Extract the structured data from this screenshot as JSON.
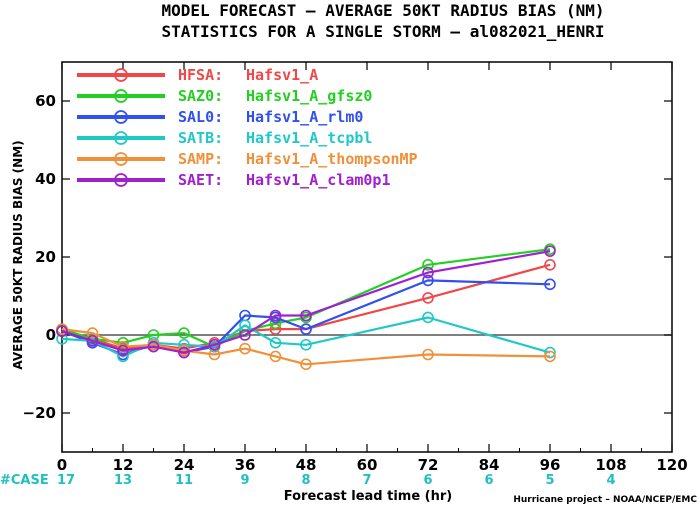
{
  "chart_data": {
    "type": "line",
    "title": "MODEL FORECAST – AVERAGE 50KT RADIUS BIAS (NM)",
    "subtitle": "STATISTICS FOR A SINGLE STORM – al082021_HENRI",
    "xlabel": "Forecast lead time (hr)",
    "ylabel": "AVERAGE 50KT RADIUS BIAS (NM)",
    "xlim": [
      0,
      120
    ],
    "ylim": [
      -30,
      70
    ],
    "x_ticks": [
      "0",
      "12",
      "24",
      "36",
      "48",
      "60",
      "72",
      "84",
      "96",
      "108",
      "120"
    ],
    "y_ticks": [
      "−20",
      "0",
      "20",
      "40",
      "60"
    ],
    "grid": false,
    "legend_position": "top-left",
    "zero_line": true,
    "x": [
      0,
      6,
      12,
      18,
      24,
      30,
      36,
      42,
      48,
      72,
      96
    ],
    "series": [
      {
        "name": "HFSA:",
        "label": "Hafsv1_A",
        "color": "#f04848",
        "values": [
          1,
          -1,
          -3.5,
          -2.5,
          -3.5,
          -2,
          1,
          1.5,
          1.5,
          9.5,
          18
        ]
      },
      {
        "name": "SAZ0:",
        "label": "Hafsv1_A_gfsz0",
        "color": "#22d022",
        "values": [
          1.5,
          -1,
          -2,
          0,
          0.5,
          -3,
          1,
          3,
          4.5,
          18,
          22
        ]
      },
      {
        "name": "SAL0:",
        "label": "Hafsv1_A_rlm0",
        "color": "#3050f0",
        "values": [
          1,
          -2,
          -5,
          -2.5,
          -4.5,
          -3,
          5,
          4.5,
          1.5,
          14,
          13
        ]
      },
      {
        "name": "SATB:",
        "label": "Hafsv1_A_tcpbl",
        "color": "#20c8c8",
        "values": [
          -1,
          -1.5,
          -5.5,
          -2,
          -2.5,
          -3,
          2.5,
          -2,
          -2.5,
          4.5,
          -4.5
        ]
      },
      {
        "name": "SAMP:",
        "label": "Hafsv1_A_thompsonMP",
        "color": "#f0903a",
        "values": [
          1.5,
          0.5,
          -3,
          -2.5,
          -4,
          -5,
          -3.5,
          -5.5,
          -7.5,
          -5,
          -5.5
        ]
      },
      {
        "name": "SAET:",
        "label": "Hafsv1_A_clam0p1",
        "color": "#a020d0",
        "values": [
          1,
          -1.5,
          -4,
          -3,
          -4.5,
          -2.5,
          0,
          5,
          5,
          16,
          21.5
        ]
      }
    ],
    "case_label": "#CASE",
    "case_color": "#20c0c0",
    "case_counts": [
      {
        "x": 0,
        "n": "17"
      },
      {
        "x": 12,
        "n": "13"
      },
      {
        "x": 24,
        "n": "11"
      },
      {
        "x": 36,
        "n": "9"
      },
      {
        "x": 48,
        "n": "8"
      },
      {
        "x": 60,
        "n": "7"
      },
      {
        "x": 72,
        "n": "6"
      },
      {
        "x": 84,
        "n": "6"
      },
      {
        "x": 96,
        "n": "5"
      },
      {
        "x": 108,
        "n": "4"
      }
    ],
    "credit": "Hurricane project – NOAA/NCEP/EMC"
  }
}
